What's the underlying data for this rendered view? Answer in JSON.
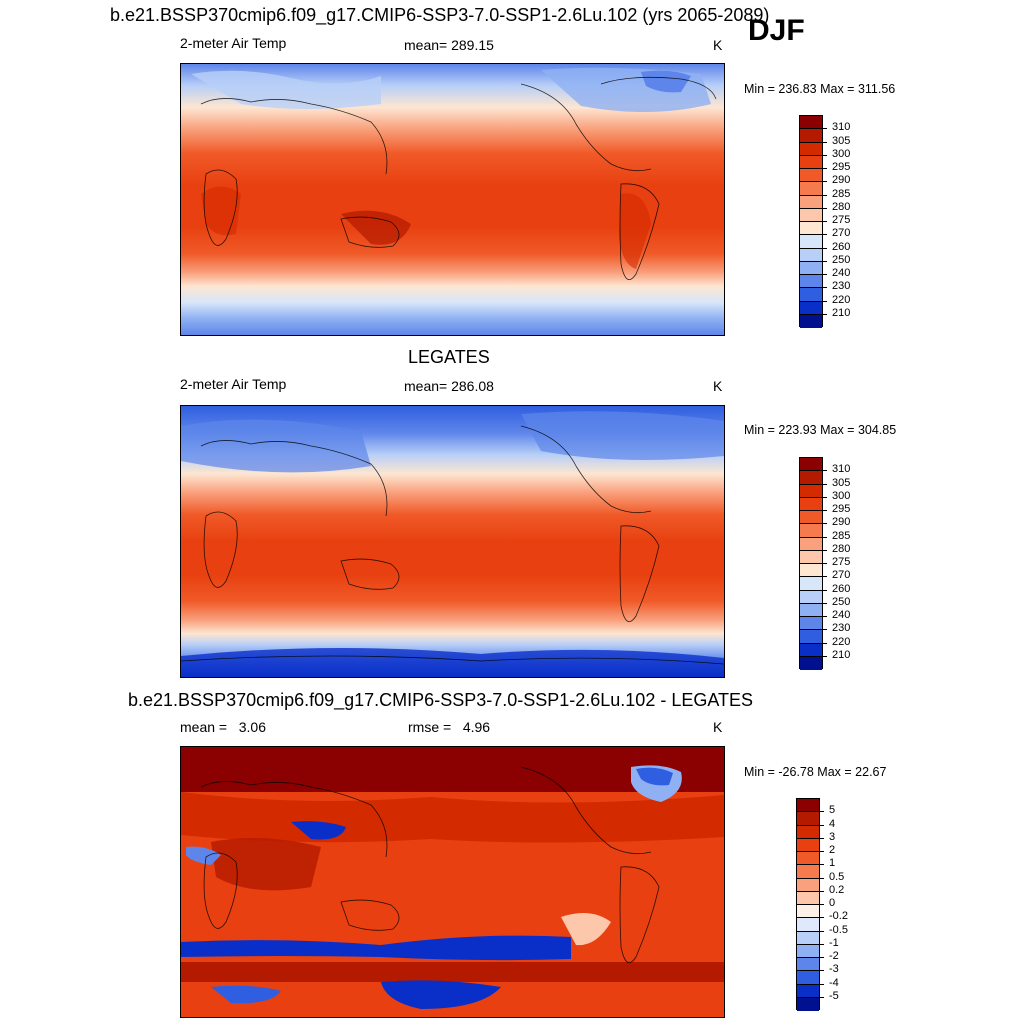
{
  "header": {
    "case_title": "b.e21.BSSP370cmip6.f09_g17.CMIP6-SSP3-7.0-SSP1-2.6Lu.102 (yrs 2065-2089)",
    "season": "DJF"
  },
  "panels": [
    {
      "id": "model",
      "title": "",
      "variable": "2-meter Air Temp",
      "stat_text": "mean= 289.15",
      "units": "K",
      "minmax": "Min = 236.83 Max = 311.56",
      "colorbar_labels": [
        "310",
        "305",
        "300",
        "295",
        "290",
        "285",
        "280",
        "275",
        "270",
        "260",
        "250",
        "240",
        "230",
        "220",
        "210"
      ],
      "colorbar_colors": [
        "#8b0000",
        "#b31a00",
        "#d42a00",
        "#e84010",
        "#f05a28",
        "#f57a4e",
        "#f9a07c",
        "#fcc7aa",
        "#fde6d2",
        "#d8e6fa",
        "#b8cff7",
        "#8fb0f2",
        "#5e86ea",
        "#2f5ee0",
        "#0a2fc9",
        "#00108f"
      ]
    },
    {
      "id": "obs",
      "title": "LEGATES",
      "variable": "2-meter Air Temp",
      "stat_text": "mean= 286.08",
      "units": "K",
      "minmax": "Min = 223.93 Max = 304.85",
      "colorbar_labels": [
        "310",
        "305",
        "300",
        "295",
        "290",
        "285",
        "280",
        "275",
        "270",
        "260",
        "250",
        "240",
        "230",
        "220",
        "210"
      ],
      "colorbar_colors": [
        "#8b0000",
        "#b31a00",
        "#d42a00",
        "#e84010",
        "#f05a28",
        "#f57a4e",
        "#f9a07c",
        "#fcc7aa",
        "#fde6d2",
        "#d8e6fa",
        "#b8cff7",
        "#8fb0f2",
        "#5e86ea",
        "#2f5ee0",
        "#0a2fc9",
        "#00108f"
      ]
    },
    {
      "id": "diff",
      "title": "b.e21.BSSP370cmip6.f09_g17.CMIP6-SSP3-7.0-SSP1-2.6Lu.102 - LEGATES",
      "variable": "mean =   3.06",
      "stat_text": "rmse =   4.96",
      "units": "K",
      "minmax": "Min = -26.78 Max =  22.67",
      "colorbar_labels": [
        "5",
        "4",
        "3",
        "2",
        "1",
        "0.5",
        "0.2",
        "0",
        "-0.2",
        "-0.5",
        "-1",
        "-2",
        "-3",
        "-4",
        "-5"
      ],
      "colorbar_colors": [
        "#8b0000",
        "#b31a00",
        "#d42a00",
        "#e84010",
        "#f05a28",
        "#f57a4e",
        "#f9a07c",
        "#fcc7aa",
        "#fdf0e6",
        "#dfe9fb",
        "#b8cff7",
        "#8fb0f2",
        "#5e86ea",
        "#2f5ee0",
        "#0a2fc9",
        "#00108f"
      ]
    }
  ]
}
